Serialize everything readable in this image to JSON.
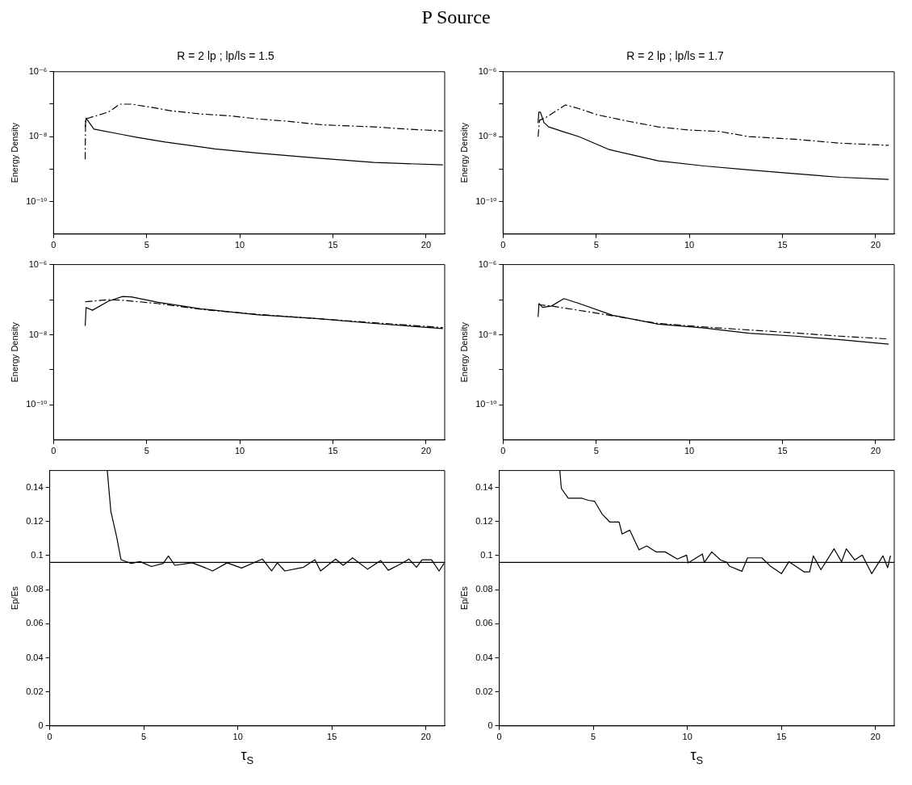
{
  "chart_data": [
    {
      "type": "line",
      "title": "R = 2 lp ; lp/ls = 1.5",
      "ylabel": "Energy Density",
      "annotations": [
        "P Source"
      ],
      "log": "y",
      "xlim": [
        0,
        21
      ],
      "xticks": [
        0,
        5,
        10,
        15,
        20
      ],
      "ylim": [
        1e-11,
        1e-06
      ],
      "yticks": [
        {
          "value": 1e-06,
          "label": "10⁻⁶"
        },
        {
          "value": 1e-07,
          "label": null
        },
        {
          "value": 1e-08,
          "label": "10⁻⁸"
        },
        {
          "value": 1e-09,
          "label": null
        },
        {
          "value": 1e-10,
          "label": "10⁻¹⁰"
        }
      ],
      "series": [
        {
          "color": "#000000",
          "line_style": "solid",
          "x": [
            1.7,
            1.75,
            2.17,
            3.56,
            4.49,
            6.0,
            8.66,
            11.0,
            14.1,
            17.2,
            20.9
          ],
          "values": [
            2e-08,
            3.7e-08,
            1.7e-08,
            1.2e-08,
            9.5e-09,
            6.8e-09,
            4.2e-09,
            3.1e-09,
            2.2e-09,
            1.6e-09,
            1.35e-09
          ]
        },
        {
          "color": "#000000",
          "line_style": "dashed",
          "x": [
            1.7,
            1.72,
            2.94,
            3.56,
            4.18,
            5.26,
            6.34,
            7.9,
            9.4,
            11.0,
            12.5,
            14.5,
            17.2,
            19.0,
            20.9
          ],
          "values": [
            2e-09,
            3.5e-08,
            5.7e-08,
            1e-07,
            1e-07,
            8e-08,
            6.2e-08,
            5e-08,
            4.4e-08,
            3.5e-08,
            3e-08,
            2.3e-08,
            2e-08,
            1.7e-08,
            1.5e-08
          ]
        }
      ]
    },
    {
      "type": "line",
      "title": "R = 2 lp ; lp/ls = 1.7",
      "ylabel": "Energy Density",
      "log": "y",
      "xlim": [
        0,
        21
      ],
      "xticks": [
        0,
        5,
        10,
        15,
        20
      ],
      "ylim": [
        1e-11,
        1e-06
      ],
      "yticks": [
        {
          "value": 1e-06,
          "label": "10⁻⁶"
        },
        {
          "value": 1e-07,
          "label": null
        },
        {
          "value": 1e-08,
          "label": "10⁻⁸"
        },
        {
          "value": 1e-09,
          "label": null
        },
        {
          "value": 1e-10,
          "label": "10⁻¹⁰"
        }
      ],
      "series": [
        {
          "color": "#000000",
          "line_style": "solid",
          "x": [
            1.88,
            1.92,
            2.0,
            2.2,
            2.45,
            3.27,
            4.08,
            5.7,
            8.33,
            10.8,
            13.2,
            15.7,
            18.1,
            20.7
          ],
          "values": [
            2.6e-08,
            5.7e-08,
            5.7e-08,
            2.7e-08,
            2e-08,
            1.4e-08,
            1e-08,
            4e-09,
            1.8e-09,
            1.25e-09,
            9.5e-10,
            7.2e-10,
            5.6e-10,
            4.8e-10
          ]
        },
        {
          "color": "#000000",
          "line_style": "dashed",
          "x": [
            1.88,
            1.96,
            2.3,
            3.35,
            4.08,
            5.06,
            6.7,
            8.33,
            9.96,
            11.6,
            13.2,
            15.7,
            18.1,
            20.7
          ],
          "values": [
            1e-08,
            3.2e-08,
            3.9e-08,
            9.5e-08,
            7.3e-08,
            4.7e-08,
            3e-08,
            2e-08,
            1.6e-08,
            1.45e-08,
            1e-08,
            8.3e-09,
            6.3e-09,
            5.4e-09
          ]
        }
      ]
    },
    {
      "type": "line",
      "ylabel": "Energy Density",
      "log": "y",
      "xlim": [
        0,
        21
      ],
      "xticks": [
        0,
        5,
        10,
        15,
        20
      ],
      "ylim": [
        1e-11,
        1e-06
      ],
      "yticks": [
        {
          "value": 1e-06,
          "label": "10⁻⁶"
        },
        {
          "value": 1e-07,
          "label": null
        },
        {
          "value": 1e-08,
          "label": "10⁻⁸"
        },
        {
          "value": 1e-09,
          "label": null
        },
        {
          "value": 1e-10,
          "label": "10⁻¹⁰"
        }
      ],
      "series": [
        {
          "color": "#000000",
          "line_style": "solid",
          "x": [
            1.7,
            1.75,
            2.09,
            2.94,
            3.71,
            4.18,
            5.57,
            7.9,
            11.0,
            14.1,
            17.2,
            20.9
          ],
          "values": [
            1.8e-08,
            6e-08,
            5e-08,
            9e-08,
            1.23e-07,
            1.2e-07,
            8.5e-08,
            5.5e-08,
            3.7e-08,
            2.9e-08,
            2.1e-08,
            1.5e-08
          ]
        },
        {
          "color": "#000000",
          "line_style": "dashed",
          "x": [
            1.7,
            2.94,
            3.71,
            5.57,
            7.9,
            11.0,
            14.1,
            17.2,
            20.9
          ],
          "values": [
            8.7e-08,
            1e-07,
            9.6e-08,
            7.8e-08,
            5.3e-08,
            3.8e-08,
            2.9e-08,
            2.2e-08,
            1.6e-08
          ]
        }
      ]
    },
    {
      "type": "line",
      "ylabel": "Energy Density",
      "log": "y",
      "xlim": [
        0,
        21
      ],
      "xticks": [
        0,
        5,
        10,
        15,
        20
      ],
      "ylim": [
        1e-11,
        1e-06
      ],
      "yticks": [
        {
          "value": 1e-06,
          "label": "10⁻⁶"
        },
        {
          "value": 1e-07,
          "label": null
        },
        {
          "value": 1e-08,
          "label": "10⁻⁸"
        },
        {
          "value": 1e-09,
          "label": null
        },
        {
          "value": 1e-10,
          "label": "10⁻¹⁰"
        }
      ],
      "series": [
        {
          "color": "#000000",
          "line_style": "solid",
          "x": [
            1.88,
            1.93,
            2.12,
            2.6,
            3.27,
            4.08,
            5.88,
            8.33,
            10.8,
            13.2,
            15.7,
            18.1,
            20.7
          ],
          "values": [
            3.2e-08,
            7.8e-08,
            6e-08,
            6.6e-08,
            1.07e-07,
            7.8e-08,
            3.6e-08,
            2e-08,
            1.55e-08,
            1.1e-08,
            9.1e-09,
            7.2e-09,
            5.4e-09
          ]
        },
        {
          "color": "#000000",
          "line_style": "dashed",
          "x": [
            1.88,
            2.6,
            5.06,
            8.33,
            11.6,
            14.9,
            18.1,
            20.7
          ],
          "values": [
            7.2e-08,
            6.6e-08,
            4.1e-08,
            2.1e-08,
            1.55e-08,
            1.2e-08,
            9.1e-09,
            7.6e-09
          ]
        }
      ]
    },
    {
      "type": "line",
      "xlabel": "τ$_{S}$",
      "ylabel": "Ep/Es",
      "xlim": [
        0,
        21
      ],
      "xticks": [
        0,
        5,
        10,
        15,
        20
      ],
      "ylim": [
        0,
        0.15
      ],
      "yticks": [
        0,
        0.02,
        0.04,
        0.06,
        0.08,
        0.1,
        0.12,
        0.14
      ],
      "ref_lines": [
        {
          "axis": "y",
          "value": 0.096,
          "color": "#000000"
        }
      ],
      "series": [
        {
          "color": "#000000",
          "line_style": "solid",
          "x": [
            3.06,
            3.25,
            3.56,
            3.79,
            4.33,
            4.8,
            5.41,
            6.03,
            6.31,
            6.65,
            7.58,
            8.2,
            8.66,
            9.43,
            10.2,
            11.3,
            11.8,
            12.1,
            12.5,
            13.5,
            14.1,
            14.4,
            15.2,
            15.6,
            16.1,
            16.9,
            17.6,
            18.0,
            18.7,
            19.1,
            19.5,
            19.8,
            20.3,
            20.7,
            20.96
          ],
          "values": [
            0.15,
            0.126,
            0.111,
            0.0976,
            0.0954,
            0.0965,
            0.0936,
            0.0954,
            0.0998,
            0.0943,
            0.0958,
            0.0932,
            0.091,
            0.0958,
            0.0927,
            0.098,
            0.091,
            0.0958,
            0.091,
            0.0932,
            0.0976,
            0.091,
            0.098,
            0.0943,
            0.0987,
            0.092,
            0.0971,
            0.0914,
            0.0954,
            0.098,
            0.0932,
            0.0976,
            0.0976,
            0.091,
            0.0954
          ]
        }
      ]
    },
    {
      "type": "line",
      "xlabel": "τ$_{S}$",
      "ylabel": "Ep/Es",
      "xlim": [
        0,
        21
      ],
      "xticks": [
        0,
        5,
        10,
        15,
        20
      ],
      "ylim": [
        0,
        0.15
      ],
      "yticks": [
        0,
        0.02,
        0.04,
        0.06,
        0.08,
        0.1,
        0.12,
        0.14
      ],
      "ref_lines": [
        {
          "axis": "y",
          "value": 0.096,
          "color": "#000000"
        }
      ],
      "series": [
        {
          "color": "#000000",
          "line_style": "solid",
          "x": [
            3.22,
            3.3,
            3.67,
            4.41,
            4.73,
            5.06,
            5.47,
            5.88,
            6.37,
            6.53,
            6.94,
            7.43,
            7.84,
            8.33,
            8.82,
            9.47,
            9.96,
            10.04,
            10.8,
            10.9,
            11.3,
            11.76,
            12.1,
            12.24,
            12.9,
            13.2,
            13.96,
            14.4,
            15.0,
            15.4,
            16.2,
            16.5,
            16.7,
            17.1,
            17.8,
            18.2,
            18.45,
            18.9,
            19.3,
            19.8,
            20.2,
            20.4,
            20.65,
            20.8
          ],
          "values": [
            0.15,
            0.1395,
            0.1337,
            0.1337,
            0.1325,
            0.132,
            0.1244,
            0.1197,
            0.1197,
            0.1127,
            0.115,
            0.1034,
            0.1057,
            0.1022,
            0.1022,
            0.098,
            0.1003,
            0.0957,
            0.101,
            0.096,
            0.1022,
            0.0975,
            0.096,
            0.0938,
            0.0908,
            0.0987,
            0.0987,
            0.094,
            0.0894,
            0.0964,
            0.0905,
            0.0905,
            0.0999,
            0.0917,
            0.104,
            0.0964,
            0.104,
            0.0975,
            0.1003,
            0.0894,
            0.0964,
            0.0999,
            0.0929,
            0.1
          ]
        }
      ]
    }
  ]
}
